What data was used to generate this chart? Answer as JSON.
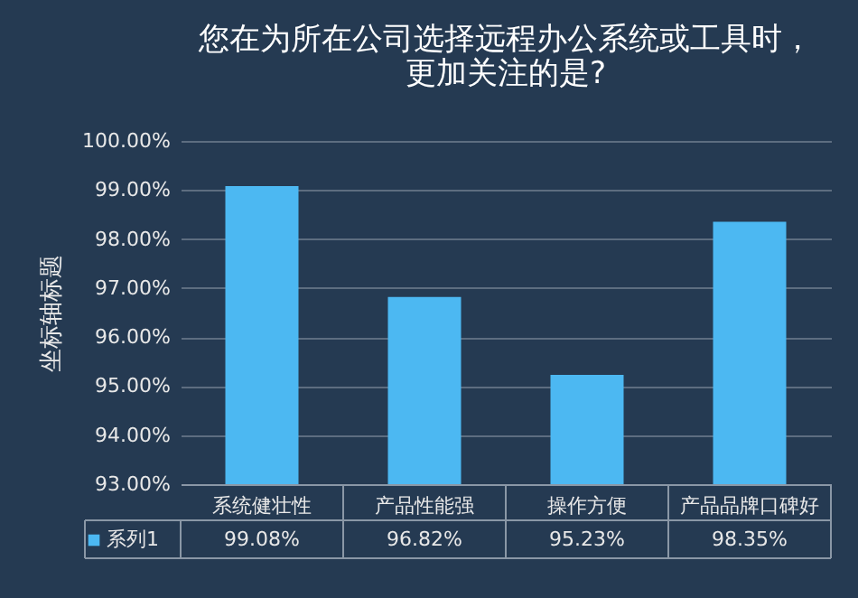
{
  "chart_data": {
    "type": "bar",
    "title": [
      "您在为所在公司选择远程办公系统或工具时，",
      "更加关注的是?"
    ],
    "ylabel": "坐标轴标题",
    "categories": [
      "系统健壮性",
      "产品性能强",
      "操作方便",
      "产品品牌口碑好"
    ],
    "series": [
      {
        "name": "系列1",
        "color": "#4cb8f2",
        "values": [
          99.08,
          96.82,
          95.23,
          98.35
        ],
        "value_labels": [
          "99.08%",
          "96.82%",
          "95.23%",
          "98.35%"
        ]
      }
    ],
    "ylim": [
      93,
      100
    ],
    "yticks": [
      {
        "value": 93,
        "label": "93.00%"
      },
      {
        "value": 94,
        "label": "94.00%"
      },
      {
        "value": 95,
        "label": "95.00%"
      },
      {
        "value": 96,
        "label": "96.00%"
      },
      {
        "value": 97,
        "label": "97.00%"
      },
      {
        "value": 98,
        "label": "98.00%"
      },
      {
        "value": 99,
        "label": "99.00%"
      },
      {
        "value": 100,
        "label": "100.00%"
      }
    ],
    "grid": "y",
    "legend": "bottom"
  }
}
